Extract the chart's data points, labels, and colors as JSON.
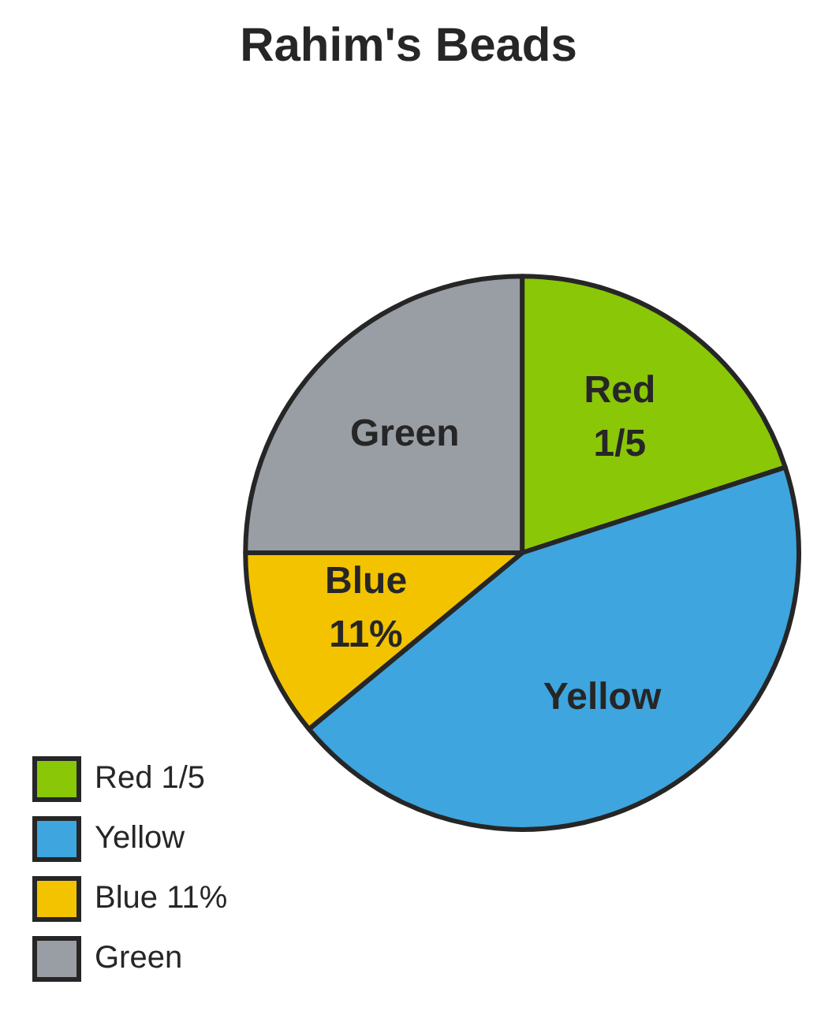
{
  "chart_data": {
    "type": "pie",
    "title": "Rahim's Beads",
    "categories": [
      "Red 1/5",
      "Yellow",
      "Blue 11%",
      "Green"
    ],
    "values": [
      20,
      44,
      11,
      25
    ],
    "colors": [
      "#8ac707",
      "#3ea5de",
      "#f3c300",
      "#999ea5"
    ],
    "legend": "bottom left"
  }
}
